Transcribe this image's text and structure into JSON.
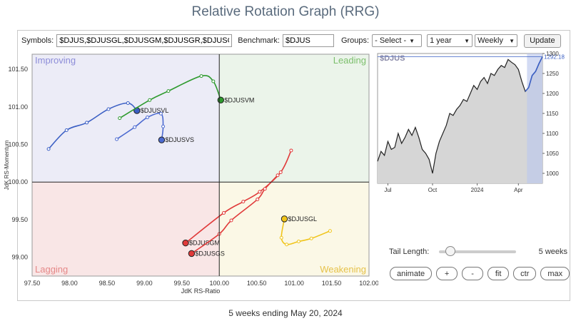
{
  "page_title": "Relative Rotation Graph (RRG)",
  "controls": {
    "symbols_label": "Symbols:",
    "symbols_value": "$DJUS,$DJUSGL,$DJUSGM,$DJUSGR,$DJUSGS",
    "benchmark_label": "Benchmark:",
    "benchmark_value": "$DJUS",
    "groups_label": "Groups:",
    "groups_value": "- Select -",
    "period_value": "1 year",
    "frequency_value": "Weekly",
    "update_label": "Update"
  },
  "tail": {
    "label": "Tail Length:",
    "value_label": "5 weeks",
    "fraction": 0.08
  },
  "buttons": {
    "animate": "animate",
    "plus": "+",
    "minus": "-",
    "fit": "fit",
    "ctr": "ctr",
    "max": "max"
  },
  "footer": "5 weeks ending May 20, 2024",
  "chart_data": [
    {
      "type": "scatter",
      "xlabel": "JdK RS-Ratio",
      "ylabel": "JdK RS-Momentum",
      "xlim": [
        97.5,
        102.0
      ],
      "ylim": [
        98.75,
        101.7
      ],
      "x_ticks": [
        "97.50",
        "98.00",
        "98.50",
        "99.00",
        "99.50",
        "100.00",
        "100.50",
        "101.00",
        "101.50",
        "102.00"
      ],
      "y_ticks": [
        "99.00",
        "99.50",
        "100.00",
        "100.50",
        "101.00",
        "101.50"
      ],
      "quadrants": {
        "improving": {
          "label": "Improving",
          "color": "#ececf7",
          "text_color": "#8c8cd8"
        },
        "leading": {
          "label": "Leading",
          "color": "#ebf4ea",
          "text_color": "#7cbf6c"
        },
        "lagging": {
          "label": "Lagging",
          "color": "#f9e6e6",
          "text_color": "#e58888"
        },
        "weakening": {
          "label": "Weakening",
          "color": "#fbf8e6",
          "text_color": "#e6c24a"
        }
      },
      "series": [
        {
          "name": "$DJUSVL",
          "color": "#3b5fc4",
          "points": [
            [
              97.72,
              100.44
            ],
            [
              97.96,
              100.69
            ],
            [
              98.23,
              100.79
            ],
            [
              98.52,
              100.97
            ],
            [
              98.78,
              101.05
            ],
            [
              98.9,
              100.95
            ]
          ]
        },
        {
          "name": "$DJUSVM",
          "color": "#2e9a2e",
          "points": [
            [
              98.67,
              100.85
            ],
            [
              99.07,
              101.09
            ],
            [
              99.32,
              101.21
            ],
            [
              99.76,
              101.41
            ],
            [
              99.92,
              101.34
            ],
            [
              100.02,
              101.09
            ]
          ]
        },
        {
          "name": "$DJUSVS",
          "color": "#4c6ad0",
          "points": [
            [
              98.63,
              100.57
            ],
            [
              98.87,
              100.73
            ],
            [
              99.04,
              100.86
            ],
            [
              99.22,
              100.91
            ],
            [
              99.25,
              100.74
            ],
            [
              99.23,
              100.56
            ]
          ]
        },
        {
          "name": "$DJUSGM",
          "color": "#e03a3a",
          "points": [
            [
              100.96,
              100.42
            ],
            [
              100.82,
              100.13
            ],
            [
              100.54,
              99.87
            ],
            [
              100.32,
              99.74
            ],
            [
              100.06,
              99.59
            ],
            [
              99.55,
              99.19
            ]
          ]
        },
        {
          "name": "$DJUSGS",
          "color": "#e03a3a",
          "points": [
            [
              100.78,
              100.09
            ],
            [
              100.61,
              99.91
            ],
            [
              100.51,
              99.77
            ],
            [
              100.16,
              99.49
            ],
            [
              100.0,
              99.31
            ],
            [
              99.63,
              99.05
            ]
          ]
        },
        {
          "name": "$DJUSGL",
          "color": "#f0c419",
          "points": [
            [
              101.48,
              99.35
            ],
            [
              101.23,
              99.25
            ],
            [
              101.06,
              99.21
            ],
            [
              100.9,
              99.17
            ],
            [
              100.83,
              99.26
            ],
            [
              100.87,
              99.51
            ]
          ]
        }
      ]
    },
    {
      "type": "area",
      "title": "$DJUS",
      "last_value_label": "1292.18",
      "ylim": [
        975,
        1300
      ],
      "y_ticks": [
        "1000",
        "1050",
        "1100",
        "1150",
        "1200",
        "1250",
        "1300"
      ],
      "x_ticks": [
        "Jul",
        "Oct",
        "2024",
        "Apr"
      ],
      "x_tick_positions": [
        3,
        16,
        29,
        41
      ],
      "highlight_range": [
        43.5,
        48
      ],
      "values": [
        1030,
        1055,
        1045,
        1080,
        1060,
        1065,
        1100,
        1075,
        1090,
        1110,
        1095,
        1115,
        1090,
        1060,
        1050,
        1035,
        1000,
        1050,
        1080,
        1100,
        1120,
        1150,
        1145,
        1160,
        1170,
        1185,
        1180,
        1200,
        1220,
        1210,
        1230,
        1240,
        1225,
        1250,
        1245,
        1260,
        1270,
        1265,
        1285,
        1278,
        1272,
        1260,
        1230,
        1205,
        1215,
        1245,
        1255,
        1275,
        1292
      ]
    }
  ]
}
